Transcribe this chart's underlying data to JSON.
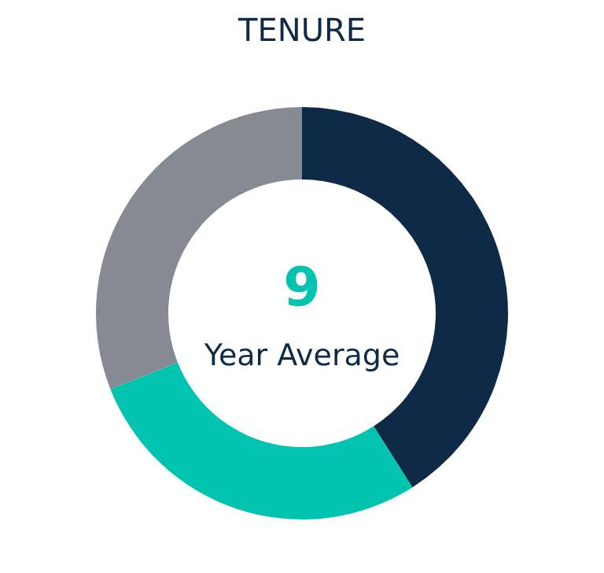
{
  "chart_data": {
    "type": "donut",
    "title": "TENURE",
    "categories": [
      null,
      null,
      null
    ],
    "values": [
      41,
      28,
      31
    ],
    "colors": [
      "#0f2a47",
      "#00c4b0",
      "#858a93"
    ],
    "annotations": [
      "9",
      "Year Average"
    ]
  }
}
